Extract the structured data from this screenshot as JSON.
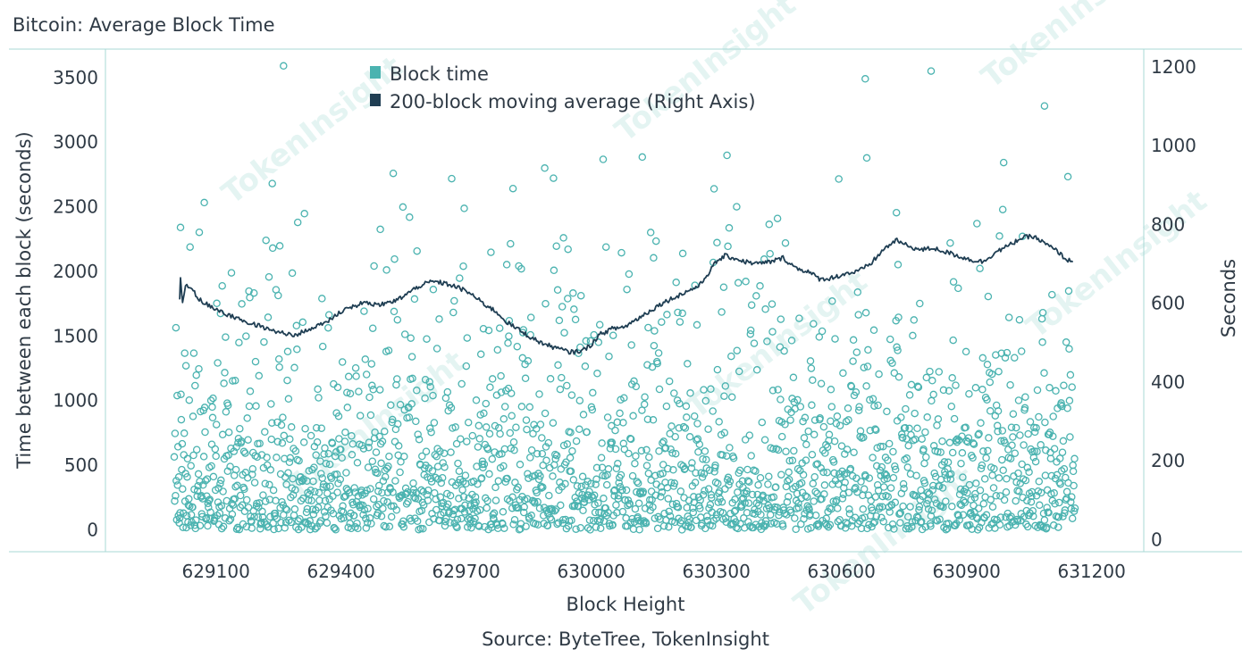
{
  "header": {
    "title": "Bitcoin: Average Block Time"
  },
  "footer": {
    "source": "Source: ByteTree, TokenInsight"
  },
  "watermark": {
    "text": "TokenInsight"
  },
  "colors": {
    "scatter": "#4bb3b0",
    "line": "#1f3e53",
    "frame": "#a9d9d6",
    "text": "#2f3a45"
  },
  "chart_data": {
    "type": "scatter",
    "xlabel": "Block Height",
    "ylabel": "Time between each block (seconds)",
    "y2label": "Seconds",
    "xlim": [
      628835,
      631325
    ],
    "ylim": [
      -170,
      3720
    ],
    "y2lim": [
      -31,
      1245
    ],
    "xticks": [
      629100,
      629400,
      629700,
      630000,
      630300,
      630600,
      630900,
      631200
    ],
    "xtick_labels": [
      "629100",
      "629400",
      "629700",
      "630000",
      "630300",
      "630600",
      "630900",
      "631200"
    ],
    "yticks": [
      0,
      500,
      1000,
      1500,
      2000,
      2500,
      3000,
      3500
    ],
    "ytick_labels": [
      "0",
      "500",
      "1000",
      "1500",
      "2000",
      "2500",
      "3000",
      "3500"
    ],
    "y2ticks": [
      0,
      200,
      400,
      600,
      800,
      1000,
      1200
    ],
    "y2tick_labels": [
      "0",
      "200",
      "400",
      "600",
      "800",
      "1000",
      "1200"
    ],
    "legend_position": "top-center",
    "series": [
      {
        "name": "Block time",
        "kind": "scatter",
        "x_range": [
          629000,
          631160
        ],
        "count": 2160,
        "note_outliers": [
          [
            629262,
            3590
          ],
          [
            630657,
            3490
          ],
          [
            630815,
            3550
          ],
          [
            631087,
            3280
          ]
        ]
      },
      {
        "name": "200-block moving average (Right Axis)",
        "kind": "line",
        "axis": "right",
        "x": [
          629013,
          629015,
          629020,
          629027,
          629040,
          629060,
          629090,
          629130,
          629170,
          629210,
          629250,
          629290,
          629330,
          629370,
          629410,
          629450,
          629490,
          629530,
          629560,
          629590,
          629620,
          629650,
          629680,
          629710,
          629740,
          629770,
          629800,
          629830,
          629860,
          629890,
          629920,
          629950,
          629980,
          630000,
          630020,
          630050,
          630080,
          630110,
          630140,
          630170,
          630200,
          630230,
          630260,
          630280,
          630300,
          630320,
          630340,
          630370,
          630400,
          630430,
          630460,
          630490,
          630520,
          630550,
          630580,
          630610,
          630640,
          630670,
          630700,
          630730,
          630760,
          630790,
          630820,
          630850,
          630880,
          630910,
          630940,
          630970,
          631000,
          631030,
          631060,
          631090,
          631120,
          631140,
          631155
        ],
        "y": [
          610,
          660,
          600,
          650,
          640,
          610,
          590,
          570,
          555,
          540,
          525,
          520,
          535,
          555,
          585,
          600,
          595,
          605,
          625,
          645,
          655,
          650,
          640,
          625,
          600,
          580,
          550,
          530,
          510,
          495,
          485,
          475,
          480,
          495,
          520,
          535,
          540,
          560,
          580,
          600,
          615,
          630,
          645,
          675,
          705,
          720,
          715,
          705,
          700,
          705,
          715,
          690,
          680,
          660,
          665,
          675,
          680,
          700,
          735,
          760,
          745,
          735,
          740,
          730,
          720,
          710,
          705,
          730,
          745,
          765,
          770,
          750,
          730,
          710,
          705
        ]
      }
    ]
  }
}
